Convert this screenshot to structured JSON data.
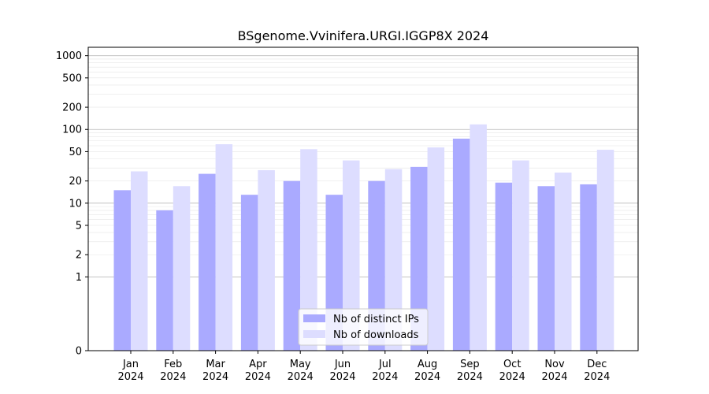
{
  "chart_data": {
    "type": "bar",
    "title": "BSgenome.Vvinifera.URGI.IGGP8X 2024",
    "xlabel": "",
    "ylabel": "",
    "y_scale": "symlog",
    "ylim": [
      0,
      1300
    ],
    "y_ticks": [
      0,
      1,
      2,
      5,
      10,
      20,
      50,
      100,
      200,
      500,
      1000
    ],
    "y_tick_labels": [
      "0",
      "1",
      "2",
      "5",
      "10",
      "20",
      "50",
      "100",
      "200",
      "500",
      "1000"
    ],
    "categories": [
      "Jan",
      "Feb",
      "Mar",
      "Apr",
      "May",
      "Jun",
      "Jul",
      "Aug",
      "Sep",
      "Oct",
      "Nov",
      "Dec"
    ],
    "category_sublabels": [
      "2024",
      "2024",
      "2024",
      "2024",
      "2024",
      "2024",
      "2024",
      "2024",
      "2024",
      "2024",
      "2024",
      "2024"
    ],
    "series": [
      {
        "name": "Nb of distinct IPs",
        "color": "#aaaaff",
        "values": [
          15,
          8,
          25,
          13,
          20,
          13,
          20,
          31,
          75,
          19,
          17,
          18
        ]
      },
      {
        "name": "Nb of downloads",
        "color": "#ddddff",
        "values": [
          27,
          17,
          63,
          28,
          54,
          38,
          29,
          57,
          117,
          38,
          26,
          53
        ]
      }
    ],
    "legend_position": "lower-center",
    "grid": "y"
  }
}
